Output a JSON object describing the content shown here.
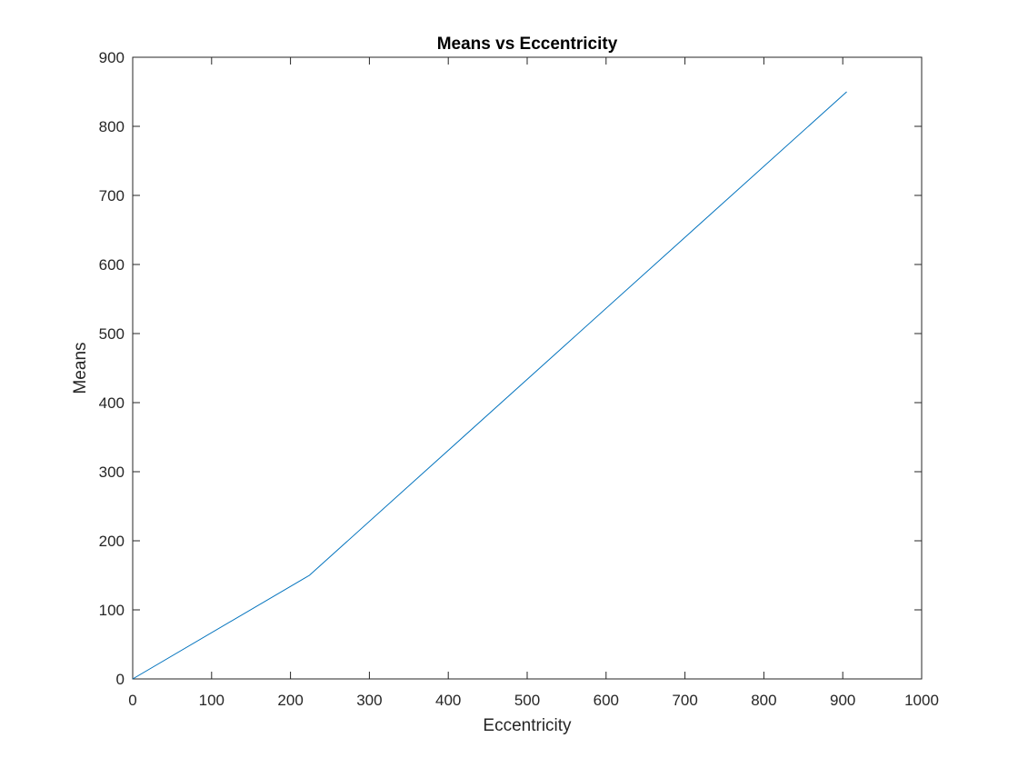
{
  "chart_data": {
    "type": "line",
    "title": "Means vs Eccentricity",
    "xlabel": "Eccentricity",
    "ylabel": "Means",
    "xlim": [
      0,
      1000
    ],
    "ylim": [
      0,
      900
    ],
    "xticks": [
      "0",
      "100",
      "200",
      "300",
      "400",
      "500",
      "600",
      "700",
      "800",
      "900",
      "1000"
    ],
    "yticks": [
      "0",
      "100",
      "200",
      "300",
      "400",
      "500",
      "600",
      "700",
      "800",
      "900"
    ],
    "grid": false,
    "box": true,
    "series": [
      {
        "color": "#0072BD",
        "x": [
          0,
          224,
          905
        ],
        "y": [
          0,
          150,
          850
        ]
      }
    ]
  }
}
